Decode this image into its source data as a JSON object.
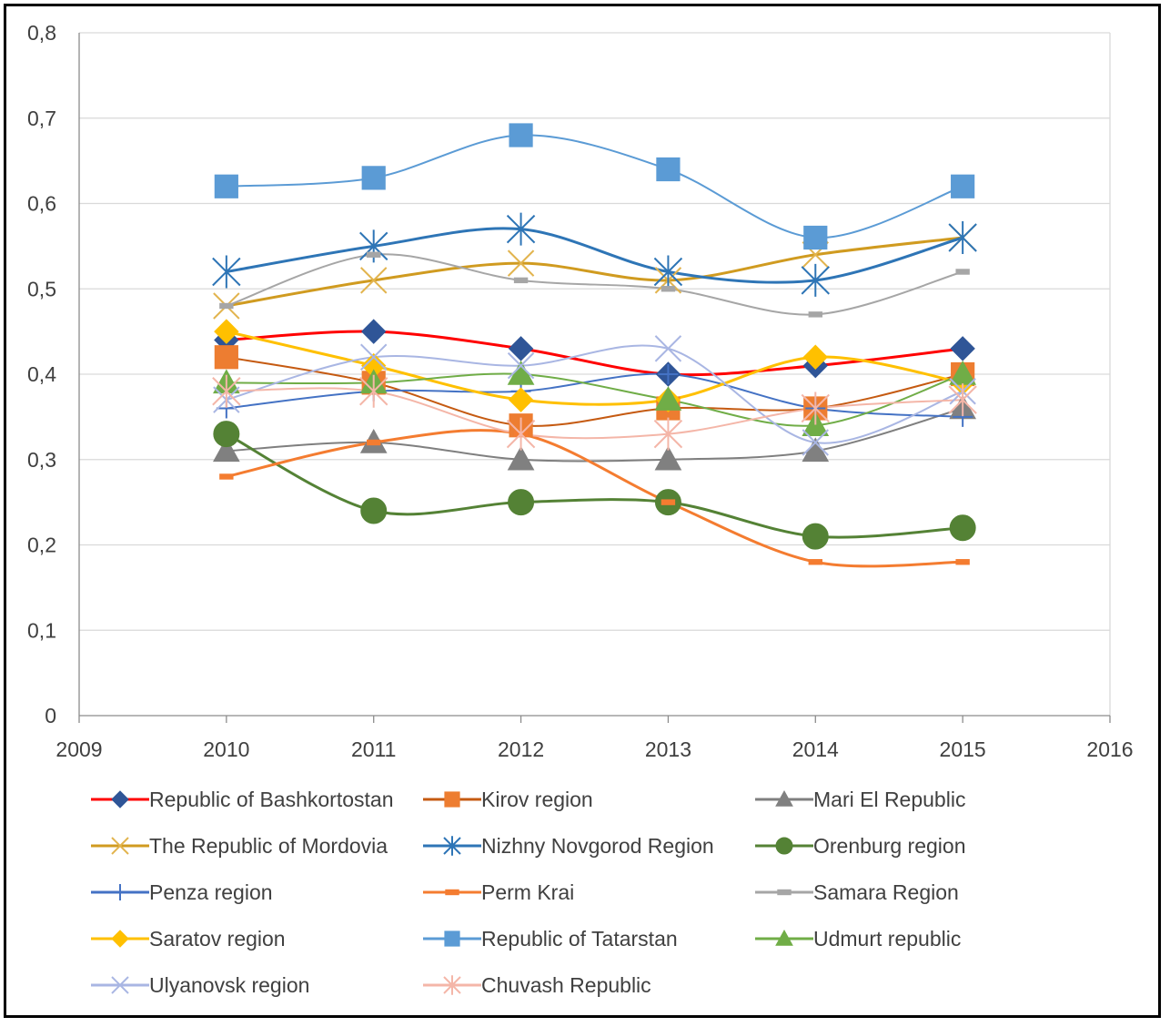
{
  "chart_data": {
    "type": "line",
    "title": "",
    "xlabel": "",
    "ylabel": "",
    "xlim": [
      2009,
      2016
    ],
    "ylim": [
      0,
      0.8
    ],
    "x_ticks": [
      "2009",
      "2010",
      "2011",
      "2012",
      "2013",
      "2014",
      "2015",
      "2016"
    ],
    "y_ticks": [
      "0",
      "0,1",
      "0,2",
      "0,3",
      "0,4",
      "0,5",
      "0,6",
      "0,7",
      "0,8"
    ],
    "grid": "horizontal",
    "legend_position": "bottom",
    "smoothed": true,
    "x": [
      2010,
      2011,
      2012,
      2013,
      2014,
      2015
    ],
    "series": [
      {
        "name": "Republic of Bashkortostan",
        "color": "#ff0000",
        "marker_color": "#2f5597",
        "marker": "diamond",
        "values": [
          0.44,
          0.45,
          0.43,
          0.4,
          0.41,
          0.43
        ]
      },
      {
        "name": "Kirov region",
        "color": "#c55a11",
        "marker_color": "#ed7d31",
        "marker": "square",
        "values": [
          0.42,
          0.39,
          0.34,
          0.36,
          0.36,
          0.4
        ]
      },
      {
        "name": "Mari El Republic",
        "color": "#7f7f7f",
        "marker_color": "#808080",
        "marker": "triangle",
        "values": [
          0.31,
          0.32,
          0.3,
          0.3,
          0.31,
          0.36
        ]
      },
      {
        "name": "The Republic of Mordovia",
        "color": "#d09b20",
        "marker_color": "#e2b44e",
        "marker": "x",
        "values": [
          0.48,
          0.51,
          0.53,
          0.51,
          0.54,
          0.56
        ]
      },
      {
        "name": "Nizhny Novgorod Region",
        "color": "#2e75b6",
        "marker_color": "#2e75b6",
        "marker": "star",
        "values": [
          0.52,
          0.55,
          0.57,
          0.52,
          0.51,
          0.56
        ]
      },
      {
        "name": "Orenburg region",
        "color": "#548235",
        "marker_color": "#548235",
        "marker": "circle",
        "values": [
          0.33,
          0.24,
          0.25,
          0.25,
          0.21,
          0.22
        ]
      },
      {
        "name": "Penza region",
        "color": "#4472c4",
        "marker_color": "#4472c4",
        "marker": "plus",
        "values": [
          0.36,
          0.38,
          0.38,
          0.4,
          0.36,
          0.35
        ]
      },
      {
        "name": "Perm Krai",
        "color": "#f47c30",
        "marker_color": "#f47c30",
        "marker": "dash",
        "values": [
          0.28,
          0.32,
          0.33,
          0.25,
          0.18,
          0.18
        ]
      },
      {
        "name": "Samara Region",
        "color": "#a6a6a6",
        "marker_color": "#a6a6a6",
        "marker": "dash",
        "values": [
          0.48,
          0.54,
          0.51,
          0.5,
          0.47,
          0.52
        ]
      },
      {
        "name": "Saratov region",
        "color": "#ffc000",
        "marker_color": "#ffc000",
        "marker": "diamond",
        "values": [
          0.45,
          0.41,
          0.37,
          0.37,
          0.42,
          0.39
        ]
      },
      {
        "name": "Republic of Tatarstan",
        "color": "#5b9bd5",
        "marker_color": "#5b9bd5",
        "marker": "square",
        "values": [
          0.62,
          0.63,
          0.68,
          0.64,
          0.56,
          0.62
        ]
      },
      {
        "name": "Udmurt republic",
        "color": "#70ad47",
        "marker_color": "#70ad47",
        "marker": "triangle",
        "values": [
          0.39,
          0.39,
          0.4,
          0.37,
          0.34,
          0.4
        ]
      },
      {
        "name": "Ulyanovsk region",
        "color": "#a9b6e3",
        "marker_color": "#a9b6e3",
        "marker": "x",
        "values": [
          0.37,
          0.42,
          0.41,
          0.43,
          0.32,
          0.38
        ]
      },
      {
        "name": "Chuvash Republic",
        "color": "#f4b6a8",
        "marker_color": "#f4b6a8",
        "marker": "star",
        "values": [
          0.38,
          0.38,
          0.33,
          0.33,
          0.36,
          0.37
        ]
      }
    ]
  }
}
